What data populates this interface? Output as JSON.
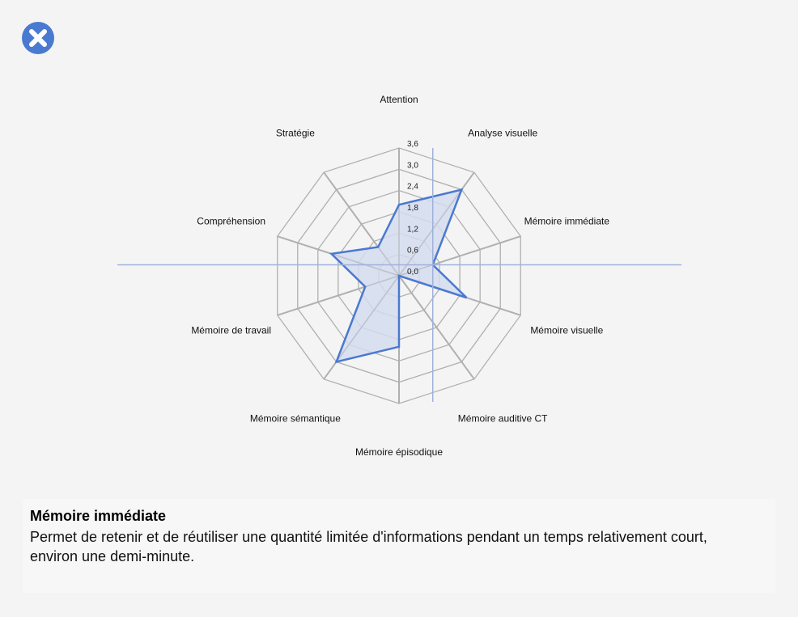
{
  "close_button": {
    "icon": "close-icon",
    "color": "#4a79d0"
  },
  "chart_data": {
    "type": "radar",
    "categories": [
      "Attention",
      "Analyse visuelle",
      "Mémoire immédiate",
      "Mémoire visuelle",
      "Mémoire auditive CT",
      "Mémoire épisodique",
      "Mémoire sémantique",
      "Mémoire de travail",
      "Compréhension",
      "Stratégie"
    ],
    "values": [
      2.0,
      3.0,
      1.0,
      2.0,
      0.0,
      2.0,
      3.0,
      1.0,
      2.0,
      1.0
    ],
    "rlim": [
      0,
      3.6
    ],
    "ticks": [
      "0,0",
      "0,6",
      "1,2",
      "1,8",
      "2,4",
      "3,0",
      "3,6"
    ],
    "grid": true,
    "highlighted_category": "Mémoire immédiate",
    "colors": {
      "series": "#4a79d0",
      "fill": "#d3dcee",
      "grid": "#b0b0b0",
      "crosshair": "#9fb2db"
    }
  },
  "info_panel": {
    "title": "Mémoire immédiate",
    "text": "Permet de retenir et de réutiliser une quantité limitée d'informations pendant un temps relativement court, environ une demi-minute."
  }
}
